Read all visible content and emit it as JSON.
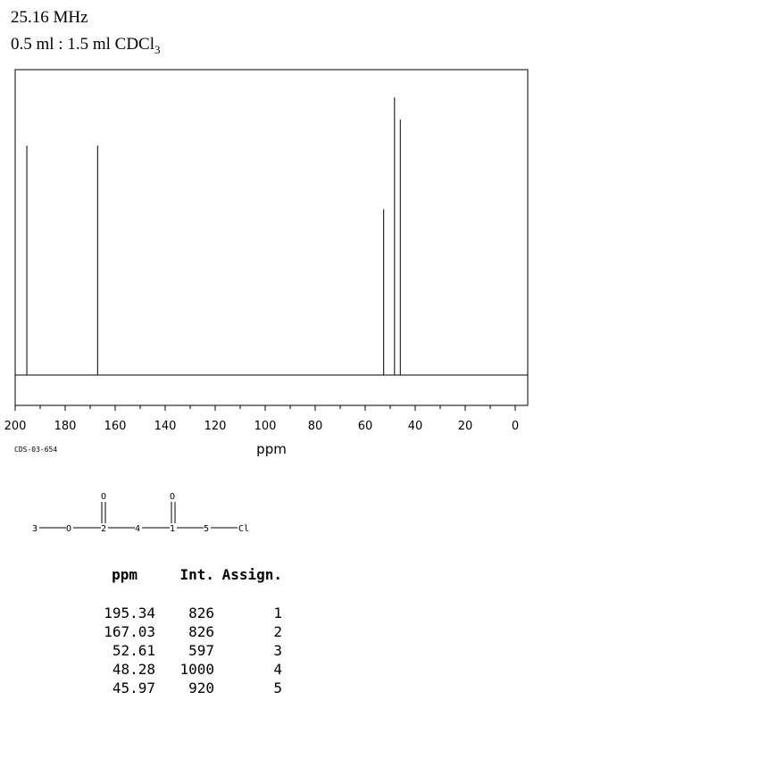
{
  "header": {
    "frequency": "25.16 MHz",
    "solvent_prefix": "0.5 ml : 1.5 ml CDCl",
    "solvent_subscript": "3"
  },
  "spectrum_code": "CDS-03-654",
  "chart_data": {
    "type": "line",
    "xlabel": "ppm",
    "xlim": [
      200,
      -5
    ],
    "x_reversed": true,
    "ticks": [
      "200",
      "180",
      "160",
      "140",
      "120",
      "100",
      "80",
      "60",
      "40",
      "20",
      "0"
    ],
    "peaks": [
      {
        "ppm": 195.34,
        "intensity": 826
      },
      {
        "ppm": 167.03,
        "intensity": 826
      },
      {
        "ppm": 52.61,
        "intensity": 597
      },
      {
        "ppm": 48.28,
        "intensity": 1000
      },
      {
        "ppm": 45.97,
        "intensity": 920
      }
    ]
  },
  "molecule": {
    "atoms": [
      "3",
      "O",
      "2",
      "4",
      "1",
      "5",
      "Cl"
    ],
    "carbonyl_o_left": "O",
    "carbonyl_o_right": "O"
  },
  "table": {
    "headers": [
      "ppm",
      "Int.",
      "Assign."
    ],
    "rows": [
      [
        "195.34",
        "826",
        "1"
      ],
      [
        "167.03",
        "826",
        "2"
      ],
      [
        "52.61",
        "597",
        "3"
      ],
      [
        "48.28",
        "1000",
        "4"
      ],
      [
        "45.97",
        "920",
        "5"
      ]
    ]
  }
}
